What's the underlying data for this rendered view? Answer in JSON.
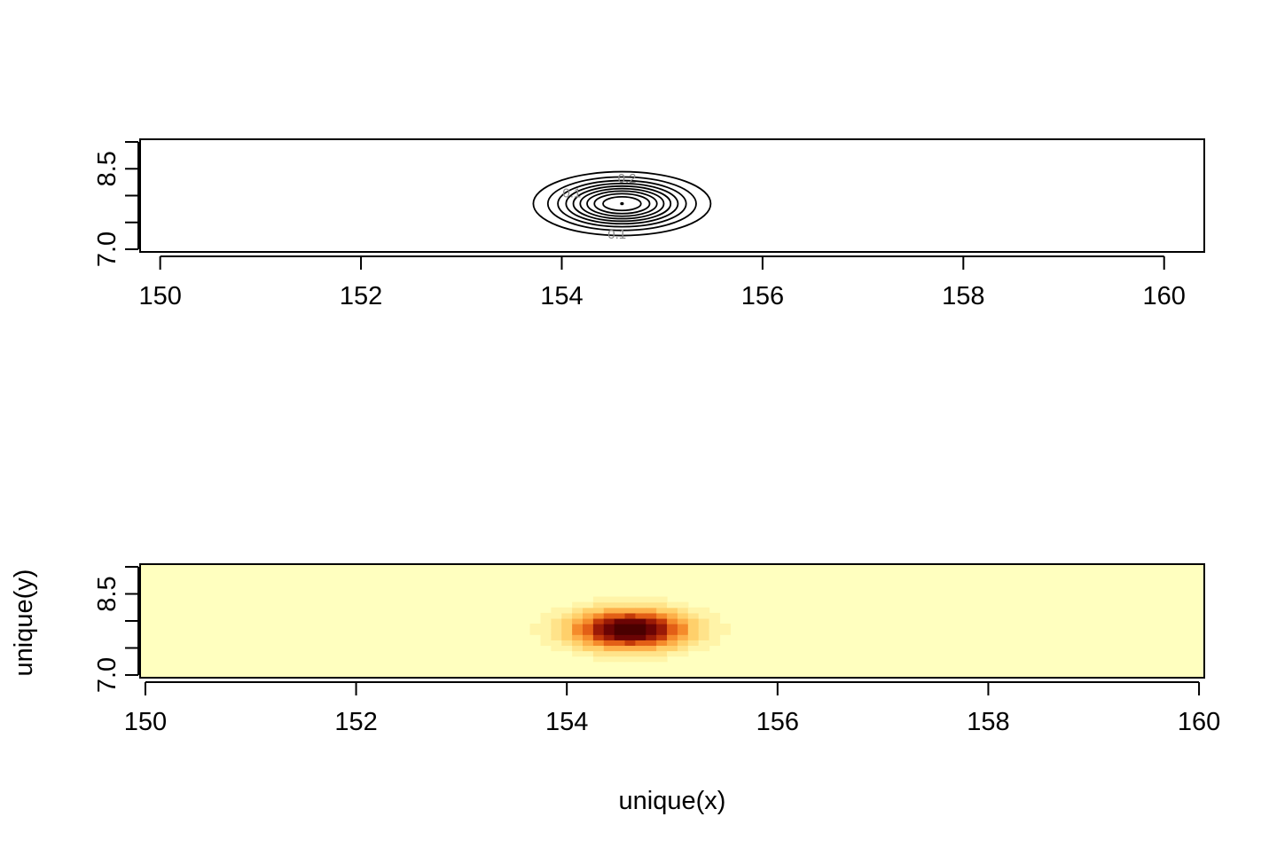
{
  "chart_data": [
    {
      "type": "contour",
      "title": "",
      "xlabel": "",
      "ylabel": "",
      "xlim": [
        149.8,
        160.4
      ],
      "ylim": [
        6.95,
        9.05
      ],
      "x_ticks": [
        150,
        152,
        154,
        156,
        158,
        160
      ],
      "x_tick_labels": [
        "150",
        "152",
        "154",
        "156",
        "158",
        "160"
      ],
      "y_ticks": [
        7.0,
        7.5,
        8.0,
        8.5,
        9.0
      ],
      "y_tick_labels": [
        "7.0",
        "8.5"
      ],
      "peak": {
        "x": 154.6,
        "y": 7.85
      },
      "levels": [
        0.1,
        0.2,
        0.3,
        0.4,
        0.5,
        0.6,
        0.7,
        0.8,
        0.9,
        1.0
      ],
      "level_labels": [
        {
          "text": "0.2",
          "x": 154.65,
          "y": 8.32
        },
        {
          "text": "0.1",
          "x": 154.55,
          "y": 7.28
        },
        {
          "text": "0.1",
          "x": 154.1,
          "y": 8.05
        }
      ],
      "grid": false
    },
    {
      "type": "heatmap",
      "title": "",
      "xlabel": "unique(x)",
      "ylabel": "unique(y)",
      "xlim": [
        149.95,
        160.05
      ],
      "ylim": [
        6.95,
        9.05
      ],
      "x_ticks": [
        150,
        152,
        154,
        156,
        158,
        160
      ],
      "x_tick_labels": [
        "150",
        "152",
        "154",
        "156",
        "158",
        "160"
      ],
      "y_ticks": [
        7.0,
        7.5,
        8.0,
        8.5,
        9.0
      ],
      "y_tick_labels": [
        "7.0",
        "8.5"
      ],
      "peak": {
        "x": 154.6,
        "y": 7.85
      },
      "colormap": "heat (low = light yellow, high = dark red)",
      "colors": [
        "#FFFFBF",
        "#FFF4A8",
        "#FFE38A",
        "#FFD06B",
        "#FDB04A",
        "#F58B2B",
        "#E35F16",
        "#C43A0A",
        "#9A1A06",
        "#6B0404",
        "#4A0000"
      ],
      "grid": false
    }
  ]
}
